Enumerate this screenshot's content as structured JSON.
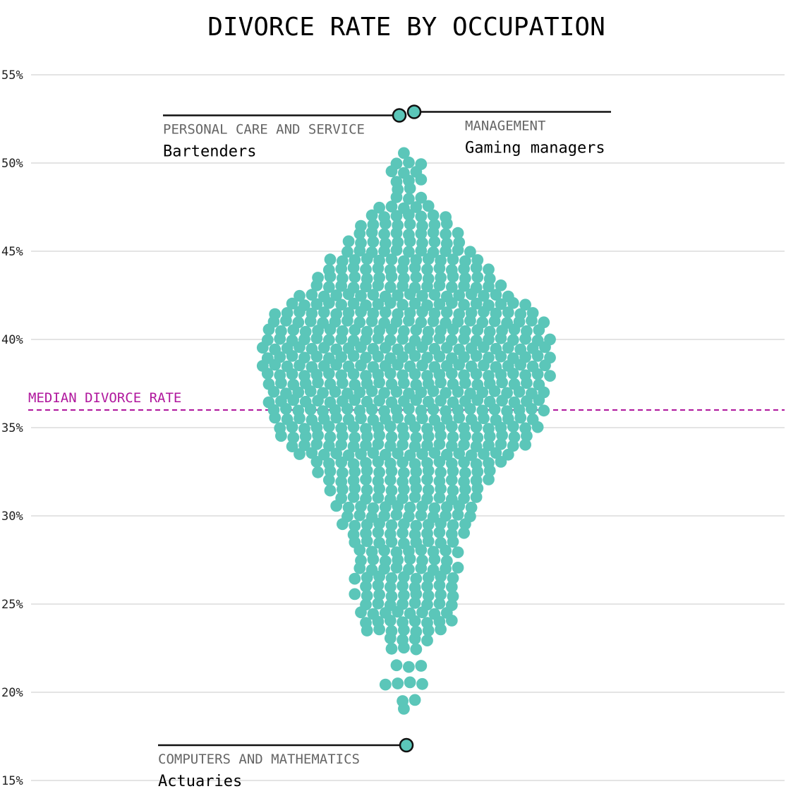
{
  "chart_data": {
    "type": "scatter",
    "variant": "beeswarm",
    "title": "DIVORCE RATE BY OCCUPATION",
    "ylim": [
      15,
      55
    ],
    "yticks": [
      55,
      50,
      45,
      40,
      35,
      30,
      25,
      20,
      15
    ],
    "ytick_labels": [
      "55%",
      "50%",
      "45%",
      "40%",
      "35%",
      "30%",
      "25%",
      "20%",
      "15%"
    ],
    "grid": true,
    "median": {
      "label": "MEDIAN DIVORCE RATE",
      "value": 36.0
    },
    "distribution": [
      {
        "bin": 19.0,
        "count": 1
      },
      {
        "bin": 19.5,
        "count": 2
      },
      {
        "bin": 20.5,
        "count": 4
      },
      {
        "bin": 21.5,
        "count": 3
      },
      {
        "bin": 22.5,
        "count": 3
      },
      {
        "bin": 23.0,
        "count": 4
      },
      {
        "bin": 23.5,
        "count": 7
      },
      {
        "bin": 24.0,
        "count": 8
      },
      {
        "bin": 24.5,
        "count": 8
      },
      {
        "bin": 25.0,
        "count": 8
      },
      {
        "bin": 25.5,
        "count": 9
      },
      {
        "bin": 26.0,
        "count": 8
      },
      {
        "bin": 26.5,
        "count": 9
      },
      {
        "bin": 27.0,
        "count": 9
      },
      {
        "bin": 27.5,
        "count": 8
      },
      {
        "bin": 28.0,
        "count": 9
      },
      {
        "bin": 28.5,
        "count": 9
      },
      {
        "bin": 29.0,
        "count": 10
      },
      {
        "bin": 29.5,
        "count": 11
      },
      {
        "bin": 30.0,
        "count": 11
      },
      {
        "bin": 30.5,
        "count": 12
      },
      {
        "bin": 31.0,
        "count": 12
      },
      {
        "bin": 31.5,
        "count": 13
      },
      {
        "bin": 32.0,
        "count": 14
      },
      {
        "bin": 32.5,
        "count": 15
      },
      {
        "bin": 33.0,
        "count": 16
      },
      {
        "bin": 33.5,
        "count": 18
      },
      {
        "bin": 34.0,
        "count": 20
      },
      {
        "bin": 34.5,
        "count": 21
      },
      {
        "bin": 35.0,
        "count": 22
      },
      {
        "bin": 35.5,
        "count": 22
      },
      {
        "bin": 36.0,
        "count": 23
      },
      {
        "bin": 36.5,
        "count": 23
      },
      {
        "bin": 37.0,
        "count": 23
      },
      {
        "bin": 37.5,
        "count": 23
      },
      {
        "bin": 38.0,
        "count": 24
      },
      {
        "bin": 38.5,
        "count": 24
      },
      {
        "bin": 39.0,
        "count": 24
      },
      {
        "bin": 39.5,
        "count": 24
      },
      {
        "bin": 40.0,
        "count": 24
      },
      {
        "bin": 40.5,
        "count": 23
      },
      {
        "bin": 41.0,
        "count": 23
      },
      {
        "bin": 41.5,
        "count": 22
      },
      {
        "bin": 42.0,
        "count": 20
      },
      {
        "bin": 42.5,
        "count": 18
      },
      {
        "bin": 43.0,
        "count": 16
      },
      {
        "bin": 43.5,
        "count": 15
      },
      {
        "bin": 44.0,
        "count": 14
      },
      {
        "bin": 44.5,
        "count": 13
      },
      {
        "bin": 45.0,
        "count": 11
      },
      {
        "bin": 45.5,
        "count": 10
      },
      {
        "bin": 46.0,
        "count": 9
      },
      {
        "bin": 46.5,
        "count": 8
      },
      {
        "bin": 47.0,
        "count": 7
      },
      {
        "bin": 47.5,
        "count": 5
      },
      {
        "bin": 48.0,
        "count": 3
      },
      {
        "bin": 48.5,
        "count": 2
      },
      {
        "bin": 49.0,
        "count": 3
      },
      {
        "bin": 49.5,
        "count": 3
      },
      {
        "bin": 50.0,
        "count": 3
      },
      {
        "bin": 50.5,
        "count": 1
      }
    ],
    "highlights": [
      {
        "category": "PERSONAL CARE AND SERVICE",
        "occupation": "Bartenders",
        "value": 52.7,
        "label_side": "left"
      },
      {
        "category": "MANAGEMENT",
        "occupation": "Gaming managers",
        "value": 52.9,
        "label_side": "right"
      },
      {
        "category": "COMPUTERS AND MATHEMATICS",
        "occupation": "Actuaries",
        "value": 17.0,
        "label_side": "left"
      }
    ],
    "colors": {
      "dot": "#5bc6b9",
      "median": "#b0179d",
      "grid": "#dcdcdc",
      "outline": "#111111"
    }
  }
}
